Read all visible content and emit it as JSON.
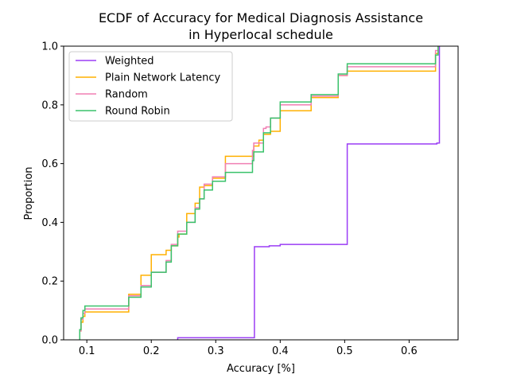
{
  "chart_data": {
    "type": "line",
    "subtype": "ecdf",
    "title": "ECDF of Accuracy for Medical Diagnosis Assistance\nin Hyperlocal schedule",
    "title_lines": [
      "ECDF of Accuracy for Medical Diagnosis Assistance",
      "in Hyperlocal schedule"
    ],
    "xlabel": "Accuracy [%]",
    "ylabel": "Proportion",
    "xlim": [
      0.064,
      0.676
    ],
    "ylim": [
      0,
      1
    ],
    "xticks": [
      0.1,
      0.2,
      0.3,
      0.4,
      0.5,
      0.6
    ],
    "xtick_labels": [
      "0.1",
      "0.2",
      "0.3",
      "0.4",
      "0.5",
      "0.6"
    ],
    "yticks": [
      0,
      0.2,
      0.4,
      0.6,
      0.8,
      1.0
    ],
    "ytick_labels": [
      "0.0",
      "0.2",
      "0.4",
      "0.6",
      "0.8",
      "1.0"
    ],
    "grid": false,
    "legend_position": "top-left",
    "series": [
      {
        "name": "Weighted",
        "color": "#9b3df5",
        "x": [
          0.241,
          0.36,
          0.383,
          0.4,
          0.504,
          0.643,
          0.647
        ],
        "y": [
          0.007,
          0.317,
          0.32,
          0.325,
          0.667,
          0.67,
          1.0
        ]
      },
      {
        "name": "Plain Network Latency",
        "color": "#ffb000",
        "x": [
          0.089,
          0.091,
          0.094,
          0.097,
          0.165,
          0.184,
          0.2,
          0.223,
          0.231,
          0.241,
          0.243,
          0.255,
          0.268,
          0.275,
          0.282,
          0.295,
          0.315,
          0.357,
          0.359,
          0.367,
          0.374,
          0.378,
          0.385,
          0.4,
          0.448,
          0.49,
          0.504,
          0.641,
          0.645
        ],
        "y": [
          0.03,
          0.06,
          0.08,
          0.095,
          0.155,
          0.22,
          0.29,
          0.305,
          0.32,
          0.35,
          0.36,
          0.43,
          0.465,
          0.52,
          0.525,
          0.55,
          0.625,
          0.625,
          0.66,
          0.68,
          0.7,
          0.7,
          0.71,
          0.78,
          0.825,
          0.9,
          0.915,
          0.975,
          1.0
        ]
      },
      {
        "name": "Random",
        "color": "#f07fb3",
        "x": [
          0.089,
          0.091,
          0.094,
          0.097,
          0.165,
          0.184,
          0.2,
          0.223,
          0.231,
          0.241,
          0.243,
          0.255,
          0.268,
          0.275,
          0.282,
          0.295,
          0.315,
          0.357,
          0.359,
          0.367,
          0.374,
          0.378,
          0.385,
          0.4,
          0.448,
          0.49,
          0.504,
          0.641,
          0.645
        ],
        "y": [
          0.03,
          0.07,
          0.09,
          0.105,
          0.15,
          0.185,
          0.23,
          0.27,
          0.325,
          0.37,
          0.37,
          0.4,
          0.45,
          0.48,
          0.53,
          0.555,
          0.6,
          0.645,
          0.67,
          0.67,
          0.72,
          0.725,
          0.755,
          0.8,
          0.83,
          0.9,
          0.93,
          0.985,
          1.0
        ]
      },
      {
        "name": "Round Robin",
        "color": "#3ac26b",
        "x": [
          0.089,
          0.091,
          0.094,
          0.097,
          0.165,
          0.184,
          0.2,
          0.223,
          0.231,
          0.241,
          0.243,
          0.255,
          0.268,
          0.275,
          0.282,
          0.295,
          0.315,
          0.357,
          0.359,
          0.367,
          0.374,
          0.378,
          0.385,
          0.4,
          0.448,
          0.49,
          0.504,
          0.641,
          0.645
        ],
        "y": [
          0.035,
          0.075,
          0.1,
          0.115,
          0.145,
          0.18,
          0.23,
          0.265,
          0.32,
          0.36,
          0.36,
          0.4,
          0.445,
          0.48,
          0.51,
          0.54,
          0.57,
          0.61,
          0.64,
          0.64,
          0.705,
          0.705,
          0.755,
          0.81,
          0.835,
          0.905,
          0.94,
          0.97,
          1.0
        ]
      }
    ]
  }
}
